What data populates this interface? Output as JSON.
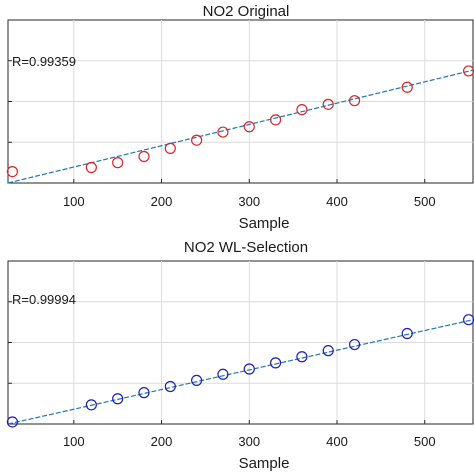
{
  "chart_data": [
    {
      "type": "scatter",
      "title": "NO2 Original",
      "xlabel": "Sample",
      "ylabel": "",
      "annotation": "R=0.99359",
      "xlim": [
        25,
        555
      ],
      "ylim": [
        0,
        4
      ],
      "xticks": [
        100,
        200,
        300,
        400,
        500
      ],
      "grid": true,
      "marker_color": "#d62728",
      "fit_line_color": "#1f77b4",
      "series": [
        {
          "x": [
            30,
            120,
            150,
            180,
            210,
            240,
            270,
            300,
            330,
            360,
            390,
            420,
            480,
            550
          ],
          "y": [
            0.28,
            0.38,
            0.5,
            0.65,
            0.85,
            1.05,
            1.25,
            1.38,
            1.55,
            1.8,
            1.93,
            2.02,
            2.35,
            2.75
          ]
        }
      ],
      "fit_line": {
        "x": [
          25,
          555
        ],
        "y": [
          0.0,
          2.77
        ]
      }
    },
    {
      "type": "scatter",
      "title": "NO2 WL-Selection",
      "xlabel": "Sample",
      "ylabel": "",
      "annotation": "R=0.99994",
      "xlim": [
        25,
        555
      ],
      "ylim": [
        0,
        4
      ],
      "xticks": [
        100,
        200,
        300,
        400,
        500
      ],
      "grid": true,
      "marker_color": "#1f1fb4",
      "fit_line_color": "#1f77b4",
      "series": [
        {
          "x": [
            30,
            120,
            150,
            180,
            210,
            240,
            270,
            300,
            330,
            360,
            390,
            420,
            480,
            550
          ],
          "y": [
            0.05,
            0.47,
            0.62,
            0.77,
            0.92,
            1.07,
            1.22,
            1.35,
            1.5,
            1.65,
            1.8,
            1.95,
            2.22,
            2.56
          ]
        }
      ],
      "fit_line": {
        "x": [
          25,
          555
        ],
        "y": [
          0.0,
          2.56
        ]
      }
    }
  ]
}
